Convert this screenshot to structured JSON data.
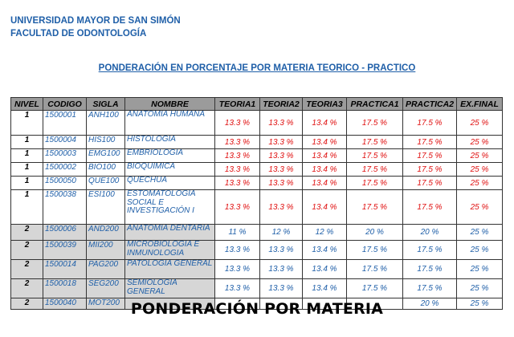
{
  "header": {
    "university": "UNIVERSIDAD MAYOR DE SAN SIMÓN",
    "faculty": "FACULTAD DE ODONTOLOGÍA"
  },
  "doc_title": "PONDERACIÓN EN PORCENTAJE POR MATERIA TEORICO - PRACTICO",
  "table": {
    "headers": [
      "NIVEL",
      "CODIGO",
      "SIGLA",
      "NOMBRE",
      "TEORIA1",
      "TEORIA2",
      "TEORIA3",
      "PRACTICA1",
      "PRACTICA2",
      "EX.FINAL"
    ],
    "rows": [
      {
        "nivel": "1",
        "codigo": "1500001",
        "sigla": "ANH100",
        "nombre": "ANATOMIA HUMANA",
        "t1": "13.3 %",
        "t2": "13.3 %",
        "t3": "13.4 %",
        "p1": "17.5 %",
        "p2": "17.5 %",
        "ex": "25 %"
      },
      {
        "nivel": "1",
        "codigo": "1500004",
        "sigla": "HIS100",
        "nombre": "HISTOLOGIA",
        "t1": "13.3 %",
        "t2": "13.3 %",
        "t3": "13.4 %",
        "p1": "17.5 %",
        "p2": "17.5 %",
        "ex": "25 %"
      },
      {
        "nivel": "1",
        "codigo": "1500003",
        "sigla": "EMG100",
        "nombre": "EMBRIOLOGIA",
        "t1": "13.3 %",
        "t2": "13.3 %",
        "t3": "13.4 %",
        "p1": "17.5 %",
        "p2": "17.5 %",
        "ex": "25 %"
      },
      {
        "nivel": "1",
        "codigo": "1500002",
        "sigla": "BIO100",
        "nombre": "BIOQUIMICA",
        "t1": "13.3 %",
        "t2": "13.3 %",
        "t3": "13.4 %",
        "p1": "17.5 %",
        "p2": "17.5 %",
        "ex": "25 %"
      },
      {
        "nivel": "1",
        "codigo": "1500050",
        "sigla": "QUE100",
        "nombre": "QUECHUA",
        "t1": "13.3 %",
        "t2": "13.3 %",
        "t3": "13.4 %",
        "p1": "17.5 %",
        "p2": "17.5 %",
        "ex": "25 %"
      },
      {
        "nivel": "1",
        "codigo": "1500038",
        "sigla": "ESI100",
        "nombre": "ESTOMATOLOGIA SOCIAL E INVESTIGACIÓN I",
        "t1": "13.3 %",
        "t2": "13.3 %",
        "t3": "13.4 %",
        "p1": "17.5 %",
        "p2": "17.5 %",
        "ex": "25 %"
      },
      {
        "nivel": "2",
        "codigo": "1500006",
        "sigla": "AND200",
        "nombre": "ANATOMIA DENTARIA",
        "t1": "11 %",
        "t2": "12 %",
        "t3": "12 %",
        "p1": "20 %",
        "p2": "20 %",
        "ex": "25 %"
      },
      {
        "nivel": "2",
        "codigo": "1500039",
        "sigla": "MII200",
        "nombre": "MICROBIOLOGIA E INMUNOLOGIA",
        "t1": "13.3 %",
        "t2": "13.3 %",
        "t3": "13.4 %",
        "p1": "17.5 %",
        "p2": "17.5 %",
        "ex": "25 %"
      },
      {
        "nivel": "2",
        "codigo": "1500014",
        "sigla": "PAG200",
        "nombre": "PATOLOGIA GENERAL",
        "t1": "13.3 %",
        "t2": "13.3 %",
        "t3": "13.4 %",
        "p1": "17.5 %",
        "p2": "17.5 %",
        "ex": "25 %"
      },
      {
        "nivel": "2",
        "codigo": "1500018",
        "sigla": "SEG200",
        "nombre": "SEMIOLOGIA GENERAL",
        "t1": "13.3 %",
        "t2": "13.3 %",
        "t3": "13.4 %",
        "p1": "17.5 %",
        "p2": "17.5 %",
        "ex": "25 %"
      },
      {
        "nivel": "2",
        "codigo": "1500040",
        "sigla": "MOT200",
        "nombre": "",
        "t1": "",
        "t2": "",
        "t3": "",
        "p1": "",
        "p2": "20 %",
        "ex": "25 %"
      }
    ]
  },
  "overlay_caption": "PONDERACIÓN POR MATERIA"
}
